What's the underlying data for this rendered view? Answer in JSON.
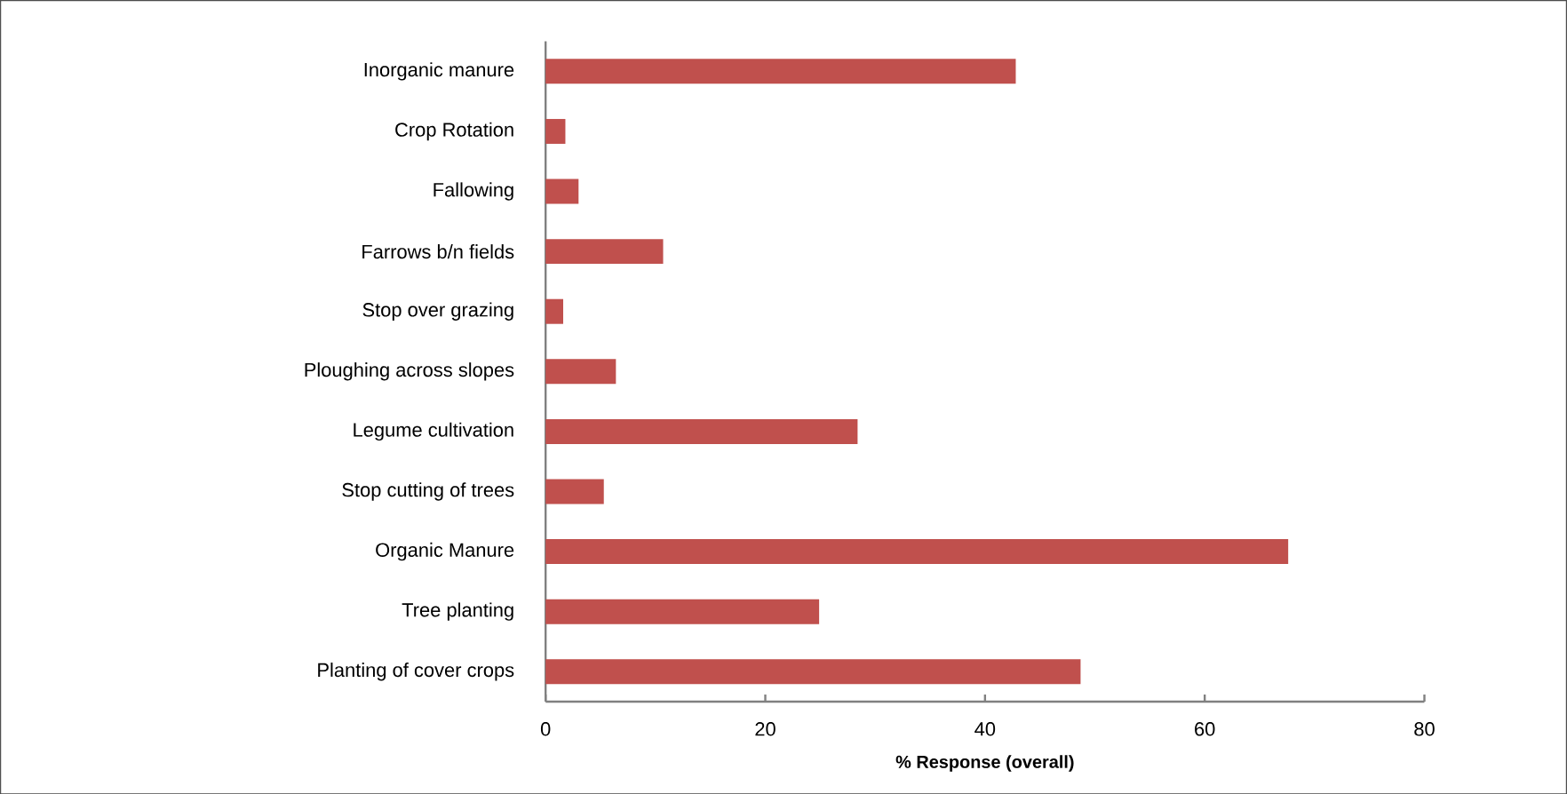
{
  "chart_data": {
    "type": "bar",
    "orientation": "horizontal",
    "xlabel": "% Response (overall)",
    "categories": [
      "Inorganic manure",
      "Crop Rotation",
      "Fallowing",
      "Farrows b/n fields",
      "Stop over grazing",
      "Ploughing across slopes",
      "Legume cultivation",
      "Stop cutting of trees",
      "Organic Manure",
      "Tree planting",
      "Planting of cover crops"
    ],
    "values": [
      42.8,
      1.8,
      3.0,
      10.7,
      1.6,
      6.4,
      28.4,
      5.3,
      67.6,
      24.9,
      48.7
    ],
    "color": "#c0504d",
    "xlim": [
      0,
      80
    ],
    "xticks": [
      0,
      20,
      40,
      60,
      80
    ],
    "grid": false
  }
}
